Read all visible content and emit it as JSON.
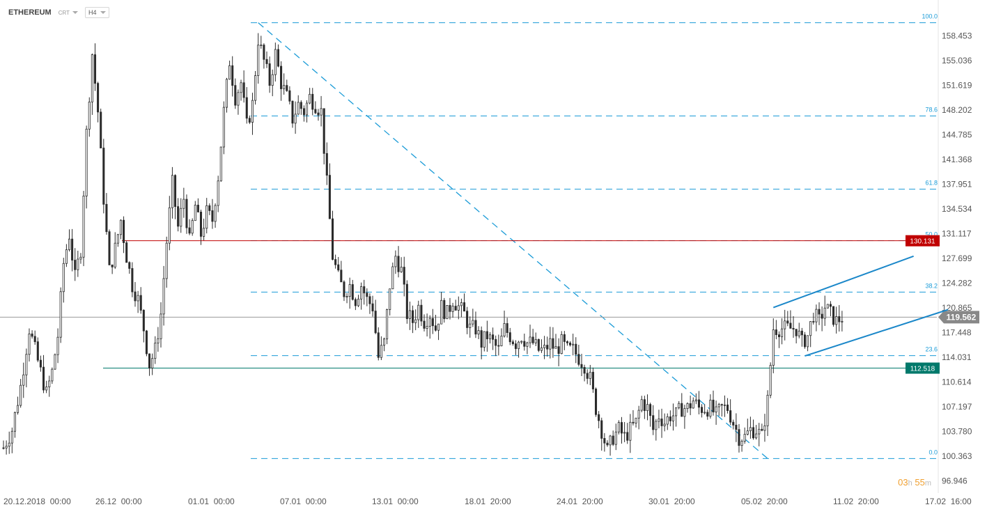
{
  "header": {
    "symbol": "ETHEREUM",
    "source": "CRT",
    "timeframe": "H4"
  },
  "countdown": {
    "hours": "03",
    "hours_unit": "h",
    "minutes": "55",
    "minutes_unit": "m"
  },
  "colors": {
    "candle": "#2b2b2b",
    "fib": "#1a9bd7",
    "resistance": "#c00000",
    "support": "#00796b",
    "current_price": "#888888",
    "channel": "#1a87c9"
  },
  "chart_data": {
    "type": "candlestick",
    "title": "",
    "ylim": [
      96.2,
      161.3
    ],
    "price_axis_ticks": [
      "158.453",
      "155.036",
      "151.619",
      "148.202",
      "144.785",
      "141.368",
      "137.951",
      "134.534",
      "131.117",
      "127.699",
      "124.282",
      "120.865",
      "117.448",
      "114.031",
      "110.614",
      "107.197",
      "103.780",
      "100.363",
      "96.946"
    ],
    "time_axis_ticks": [
      "20.12.2018  00:00",
      "26.12  00:00",
      "01.01  00:00",
      "07.01  00:00",
      "13.01  00:00",
      "18.01  20:00",
      "24.01  20:00",
      "30.01  20:00",
      "05.02  20:00",
      "11.02  20:00",
      "17.02  16:00"
    ],
    "current_price": {
      "value": 119.562,
      "label": "119.562"
    },
    "horizontal_levels": [
      {
        "value": 130.131,
        "label": "130.131",
        "kind": "resistance"
      },
      {
        "value": 112.518,
        "label": "112.518",
        "kind": "support"
      }
    ],
    "fibonacci_levels": [
      {
        "ratio": "100.0",
        "price": 160.28
      },
      {
        "ratio": "78.6",
        "price": 147.38
      },
      {
        "ratio": "61.8",
        "price": 137.26
      },
      {
        "ratio": "50.0",
        "price": 130.15
      },
      {
        "ratio": "38.2",
        "price": 123.03
      },
      {
        "ratio": "23.6",
        "price": 114.24
      },
      {
        "ratio": "0.0",
        "price": 100.02
      }
    ],
    "close_path": [
      [
        0,
        101.5
      ],
      [
        3,
        104
      ],
      [
        6,
        110
      ],
      [
        9,
        118
      ],
      [
        11,
        115
      ],
      [
        13,
        112
      ],
      [
        15,
        109
      ],
      [
        17,
        112
      ],
      [
        19,
        117
      ],
      [
        21,
        127
      ],
      [
        23,
        131
      ],
      [
        25,
        125
      ],
      [
        27,
        129
      ],
      [
        29,
        145
      ],
      [
        31,
        156
      ],
      [
        33,
        148
      ],
      [
        35,
        136
      ],
      [
        37,
        126
      ],
      [
        39,
        129
      ],
      [
        41,
        133
      ],
      [
        43,
        128
      ],
      [
        45,
        124
      ],
      [
        47,
        122
      ],
      [
        49,
        118
      ],
      [
        51,
        113
      ],
      [
        53,
        115
      ],
      [
        55,
        120
      ],
      [
        57,
        130
      ],
      [
        59,
        138
      ],
      [
        61,
        132
      ],
      [
        63,
        136
      ],
      [
        65,
        130
      ],
      [
        67,
        135
      ],
      [
        69,
        131
      ],
      [
        71,
        134
      ],
      [
        73,
        133
      ],
      [
        75,
        139
      ],
      [
        77,
        148
      ],
      [
        79,
        155
      ],
      [
        81,
        150
      ],
      [
        83,
        152
      ],
      [
        85,
        146
      ],
      [
        87,
        149
      ],
      [
        89,
        158
      ],
      [
        91,
        155
      ],
      [
        93,
        152
      ],
      [
        95,
        156
      ],
      [
        97,
        152
      ],
      [
        99,
        150
      ],
      [
        101,
        147
      ],
      [
        103,
        149
      ],
      [
        105,
        148
      ],
      [
        107,
        150
      ],
      [
        109,
        149
      ],
      [
        111,
        148
      ],
      [
        113,
        138
      ],
      [
        115,
        128
      ],
      [
        117,
        125
      ],
      [
        119,
        123
      ],
      [
        121,
        124
      ],
      [
        123,
        122
      ],
      [
        125,
        124
      ],
      [
        127,
        122
      ],
      [
        129,
        121
      ],
      [
        131,
        114
      ],
      [
        133,
        116
      ],
      [
        135,
        124
      ],
      [
        137,
        128
      ],
      [
        139,
        126
      ],
      [
        141,
        120
      ],
      [
        143,
        119
      ],
      [
        145,
        121
      ],
      [
        147,
        119
      ],
      [
        149,
        120
      ],
      [
        151,
        118
      ],
      [
        153,
        121
      ],
      [
        155,
        120
      ],
      [
        157,
        122
      ],
      [
        159,
        121
      ],
      [
        161,
        120
      ],
      [
        163,
        118
      ],
      [
        165,
        118
      ],
      [
        167,
        116
      ],
      [
        169,
        117
      ],
      [
        171,
        116
      ],
      [
        173,
        115
      ],
      [
        175,
        118
      ],
      [
        177,
        117
      ],
      [
        179,
        116
      ],
      [
        181,
        117
      ],
      [
        183,
        116
      ],
      [
        185,
        116
      ],
      [
        187,
        115
      ],
      [
        189,
        115
      ],
      [
        191,
        116
      ],
      [
        193,
        115
      ],
      [
        195,
        116
      ],
      [
        197,
        115
      ],
      [
        199,
        115
      ],
      [
        201,
        114
      ],
      [
        203,
        113
      ],
      [
        205,
        111
      ],
      [
        207,
        107
      ],
      [
        209,
        104
      ],
      [
        211,
        101
      ],
      [
        213,
        103
      ],
      [
        215,
        104
      ],
      [
        217,
        103
      ],
      [
        219,
        104
      ],
      [
        221,
        105
      ],
      [
        223,
        108
      ],
      [
        225,
        107
      ],
      [
        227,
        104
      ],
      [
        229,
        106
      ],
      [
        231,
        105
      ],
      [
        233,
        106
      ],
      [
        235,
        106
      ],
      [
        237,
        107
      ],
      [
        239,
        107
      ],
      [
        241,
        108
      ],
      [
        243,
        107
      ],
      [
        245,
        107
      ],
      [
        247,
        107
      ],
      [
        249,
        106
      ],
      [
        251,
        107
      ],
      [
        253,
        107
      ],
      [
        255,
        105
      ],
      [
        257,
        103
      ],
      [
        259,
        103
      ],
      [
        261,
        104
      ],
      [
        263,
        104
      ],
      [
        265,
        103
      ],
      [
        267,
        108
      ],
      [
        269,
        118
      ],
      [
        271,
        118
      ],
      [
        273,
        118
      ],
      [
        275,
        118
      ],
      [
        277,
        118
      ],
      [
        279,
        116
      ],
      [
        281,
        117
      ],
      [
        283,
        120
      ],
      [
        285,
        119
      ],
      [
        287,
        121
      ],
      [
        289,
        120
      ],
      [
        291,
        119
      ],
      [
        293,
        119.562
      ]
    ],
    "channel_lines": [
      {
        "from": [
          269,
          120.9
        ],
        "to": [
          318,
          128.0
        ]
      },
      {
        "from": [
          280,
          114.2
        ],
        "to": [
          330,
          120.6
        ]
      }
    ],
    "fib_diagonal": {
      "from": [
        89,
        160.28
      ],
      "to": [
        267,
        100.02
      ]
    }
  }
}
